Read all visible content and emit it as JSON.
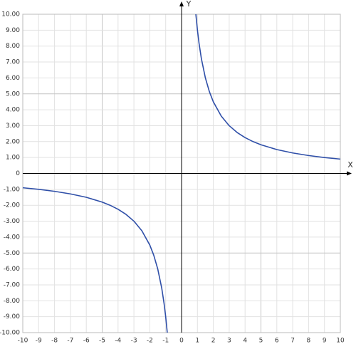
{
  "chart_data": {
    "type": "line",
    "x_label": "X",
    "y_label": "Y",
    "xlim": [
      -10,
      10
    ],
    "ylim": [
      -10,
      10
    ],
    "xticks": [
      -10,
      -9,
      -8,
      -7,
      -6,
      -5,
      -4,
      -3,
      -2,
      -1,
      0,
      1,
      2,
      3,
      4,
      5,
      6,
      7,
      8,
      9,
      10
    ],
    "yticks": [
      {
        "value": 10,
        "label": "10.00"
      },
      {
        "value": 9,
        "label": "9.00"
      },
      {
        "value": 8,
        "label": "8.00"
      },
      {
        "value": 7,
        "label": "7.00"
      },
      {
        "value": 6,
        "label": "6.00"
      },
      {
        "value": 5,
        "label": "5.00"
      },
      {
        "value": 4,
        "label": "4.00"
      },
      {
        "value": 3,
        "label": "3.00"
      },
      {
        "value": 2,
        "label": "2.00"
      },
      {
        "value": 1,
        "label": "1.00"
      },
      0,
      {
        "value": -1,
        "label": "-1.00"
      },
      {
        "value": -2,
        "label": "-2.00"
      },
      {
        "value": -3,
        "label": "-3.00"
      },
      {
        "value": -4,
        "label": "-4.00"
      },
      {
        "value": -5,
        "label": "-5.00"
      },
      {
        "value": -6,
        "label": "-6.00"
      },
      {
        "value": -7,
        "label": "-7.00"
      },
      {
        "value": -8,
        "label": "-8.00"
      },
      {
        "value": -9,
        "label": "-9.00"
      },
      {
        "value": -10,
        "label": "-10.00"
      }
    ],
    "grid": true,
    "series": [
      {
        "color": "#2f4fa8",
        "x": [
          -10,
          -9,
          -8,
          -7,
          -6,
          -5,
          -4.5,
          -4,
          -3.5,
          -3,
          -2.5,
          -2,
          -1.75,
          -1.5,
          -1.25,
          -1.1,
          -1,
          -0.9,
          0,
          0.9,
          1,
          1.1,
          1.25,
          1.5,
          1.75,
          2,
          2.5,
          3,
          3.5,
          4,
          4.5,
          5,
          6,
          7,
          8,
          9,
          10
        ],
        "values": [
          -0.9,
          -1,
          -1.125,
          -1.2857,
          -1.5,
          -1.8,
          -2,
          -2.25,
          -2.5714,
          -3,
          -3.6,
          -4.5,
          -5.1429,
          -6,
          -7.2,
          -8.1818,
          -9,
          -10,
          null,
          10,
          9,
          8.1818,
          7.2,
          6,
          5.1429,
          4.5,
          3.6,
          3,
          2.5714,
          2.25,
          2,
          1.8,
          1.5,
          1.2857,
          1.125,
          1,
          0.9
        ]
      }
    ]
  }
}
